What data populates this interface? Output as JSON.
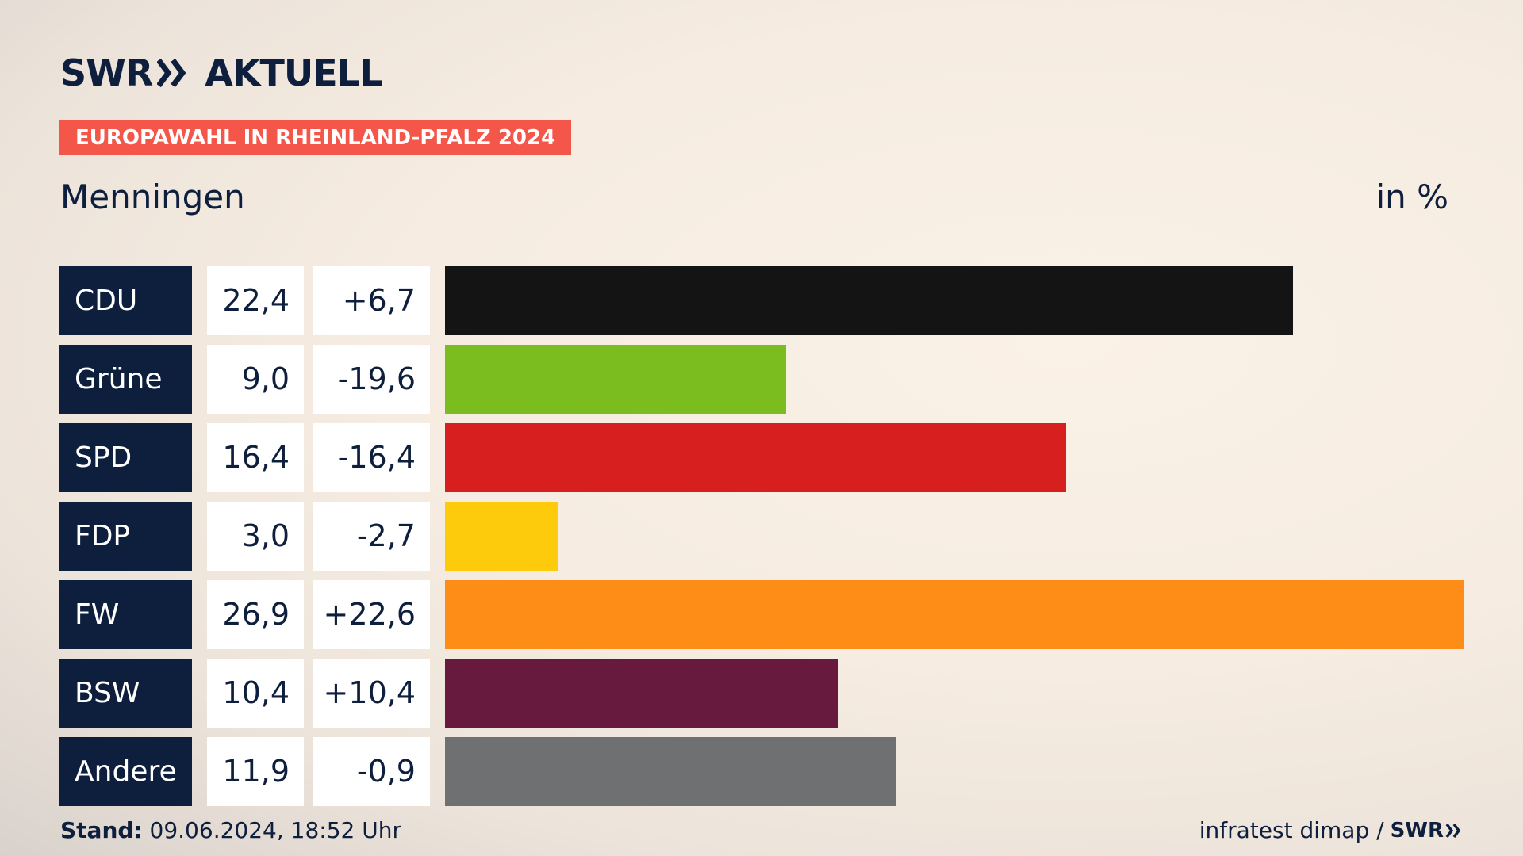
{
  "header": {
    "logo_swr": "SWR",
    "logo_aktuell": "AKTUELL",
    "banner": "EUROPAWAHL IN RHEINLAND-PFALZ 2024",
    "subtitle": "Menningen",
    "unit": "in %"
  },
  "chart_data": {
    "type": "bar",
    "orientation": "horizontal",
    "title": "EUROPAWAHL IN RHEINLAND-PFALZ 2024",
    "subtitle": "Menningen",
    "unit": "in %",
    "xlim": [
      0,
      26.9
    ],
    "rows": [
      {
        "party": "CDU",
        "value": 22.4,
        "value_label": "22,4",
        "diff_label": "+6,7",
        "color": "#141414"
      },
      {
        "party": "Grüne",
        "value": 9.0,
        "value_label": "9,0",
        "diff_label": "-19,6",
        "color": "#7bbd1f"
      },
      {
        "party": "SPD",
        "value": 16.4,
        "value_label": "16,4",
        "diff_label": "-16,4",
        "color": "#d81f1f"
      },
      {
        "party": "FDP",
        "value": 3.0,
        "value_label": "3,0",
        "diff_label": "-2,7",
        "color": "#fecb0c"
      },
      {
        "party": "FW",
        "value": 26.9,
        "value_label": "26,9",
        "diff_label": "+22,6",
        "color": "#fd8d17"
      },
      {
        "party": "BSW",
        "value": 10.4,
        "value_label": "10,4",
        "diff_label": "+10,4",
        "color": "#681a3e"
      },
      {
        "party": "Andere",
        "value": 11.9,
        "value_label": "11,9",
        "diff_label": "-0,9",
        "color": "#6f7072"
      }
    ]
  },
  "footer": {
    "stand_label": "Stand:",
    "stand_value": "09.06.2024, 18:52 Uhr",
    "source": "infratest dimap /",
    "source_logo": "SWR"
  },
  "colors": {
    "navy": "#0e1f3d",
    "banner": "#f4574a"
  }
}
